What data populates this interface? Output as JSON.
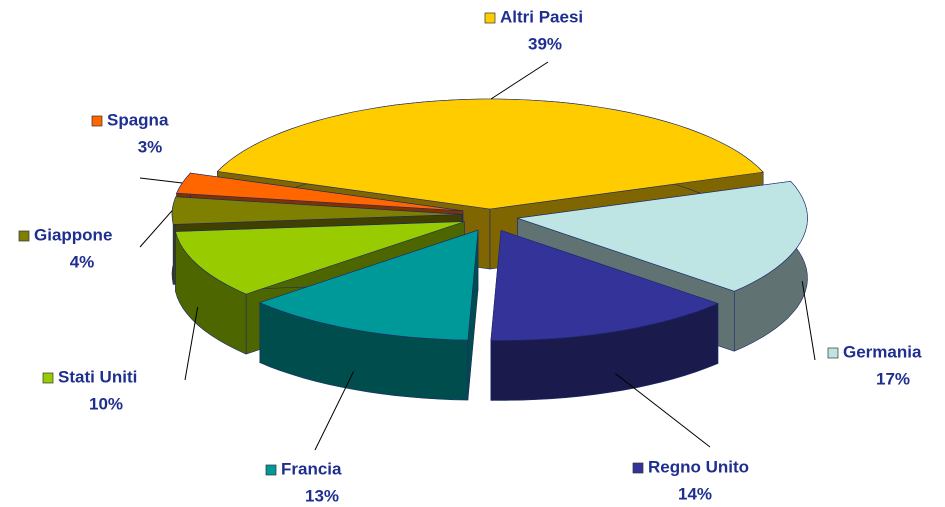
{
  "chart_data": {
    "type": "pie3d",
    "categories": [
      "Altri Paesi",
      "Germania",
      "Regno Unito",
      "Francia",
      "Stati Uniti",
      "Giappone",
      "Spagna"
    ],
    "values": [
      39,
      17,
      14,
      13,
      10,
      4,
      3
    ],
    "value_labels": [
      "39%",
      "17%",
      "14%",
      "13%",
      "10%",
      "4%",
      "3%"
    ],
    "colors": [
      "#ffcc00",
      "#bfe4e4",
      "#333399",
      "#009999",
      "#99cc00",
      "#808000",
      "#ff6600"
    ]
  }
}
